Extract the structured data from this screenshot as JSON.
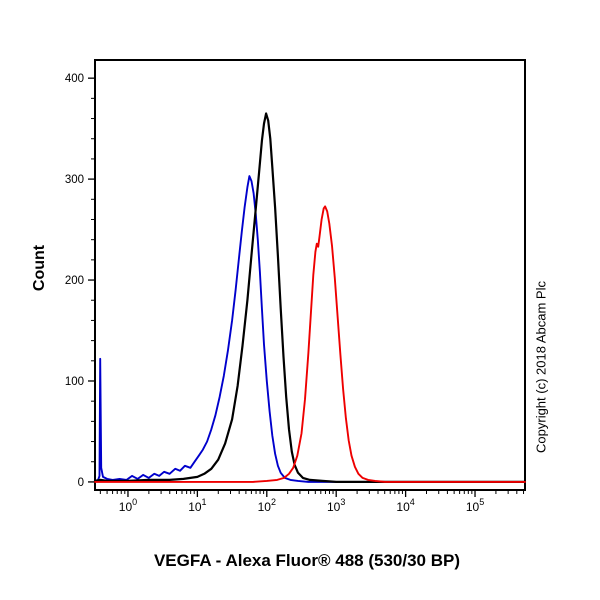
{
  "copyright": "Copyright (c) 2018 Abcam Plc",
  "chart_data": {
    "type": "line",
    "title": "VEGFA - Alexa Fluor® 488 (530/30 BP)",
    "xlabel": "VEGFA - Alexa Fluor® 488 (530/30 BP)",
    "ylabel": "Count",
    "x_scale": "log10",
    "xlim_log": [
      -0.475,
      5.72
    ],
    "ylim": [
      -8,
      418
    ],
    "y_ticks": [
      0,
      100,
      200,
      300,
      400
    ],
    "y_minor_step": 20,
    "x_ticks_exponents": [
      0,
      1,
      2,
      3,
      4,
      5
    ],
    "grid": false,
    "legend": "none",
    "axis_color": "#000000",
    "series": [
      {
        "name": "blue",
        "color": "#0000cc",
        "peak_x": 56,
        "peak_count": 303,
        "points": [
          [
            -0.475,
            1
          ],
          [
            -0.43,
            2
          ],
          [
            -0.41,
            6
          ],
          [
            -0.4,
            122
          ],
          [
            -0.385,
            14
          ],
          [
            -0.36,
            5
          ],
          [
            -0.3,
            3
          ],
          [
            -0.22,
            2
          ],
          [
            -0.12,
            3
          ],
          [
            -0.02,
            2
          ],
          [
            0.06,
            6
          ],
          [
            0.14,
            3
          ],
          [
            0.22,
            7
          ],
          [
            0.3,
            4
          ],
          [
            0.38,
            8
          ],
          [
            0.45,
            6
          ],
          [
            0.52,
            10
          ],
          [
            0.6,
            8
          ],
          [
            0.68,
            13
          ],
          [
            0.75,
            11
          ],
          [
            0.82,
            16
          ],
          [
            0.9,
            14
          ],
          [
            0.96,
            20
          ],
          [
            1.02,
            26
          ],
          [
            1.08,
            32
          ],
          [
            1.14,
            40
          ],
          [
            1.2,
            52
          ],
          [
            1.26,
            66
          ],
          [
            1.32,
            84
          ],
          [
            1.38,
            105
          ],
          [
            1.44,
            130
          ],
          [
            1.5,
            160
          ],
          [
            1.55,
            190
          ],
          [
            1.6,
            222
          ],
          [
            1.64,
            248
          ],
          [
            1.68,
            272
          ],
          [
            1.72,
            292
          ],
          [
            1.75,
            303
          ],
          [
            1.78,
            298
          ],
          [
            1.81,
            286
          ],
          [
            1.84,
            266
          ],
          [
            1.87,
            240
          ],
          [
            1.9,
            208
          ],
          [
            1.93,
            172
          ],
          [
            1.96,
            136
          ],
          [
            2.0,
            100
          ],
          [
            2.04,
            70
          ],
          [
            2.08,
            46
          ],
          [
            2.12,
            28
          ],
          [
            2.16,
            16
          ],
          [
            2.2,
            9
          ],
          [
            2.26,
            4
          ],
          [
            2.34,
            2
          ],
          [
            2.45,
            1
          ],
          [
            2.6,
            0
          ],
          [
            5.72,
            0
          ]
        ]
      },
      {
        "name": "black",
        "color": "#000000",
        "peak_x": 98,
        "peak_count": 365,
        "points": [
          [
            -0.475,
            1
          ],
          [
            -0.4,
            2
          ],
          [
            -0.3,
            1
          ],
          [
            0.0,
            1
          ],
          [
            0.3,
            2
          ],
          [
            0.6,
            2
          ],
          [
            0.8,
            3
          ],
          [
            1.0,
            5
          ],
          [
            1.1,
            8
          ],
          [
            1.2,
            13
          ],
          [
            1.3,
            22
          ],
          [
            1.4,
            38
          ],
          [
            1.5,
            62
          ],
          [
            1.58,
            95
          ],
          [
            1.65,
            135
          ],
          [
            1.72,
            180
          ],
          [
            1.78,
            225
          ],
          [
            1.84,
            270
          ],
          [
            1.89,
            308
          ],
          [
            1.93,
            338
          ],
          [
            1.96,
            355
          ],
          [
            1.99,
            365
          ],
          [
            2.02,
            358
          ],
          [
            2.05,
            340
          ],
          [
            2.08,
            312
          ],
          [
            2.12,
            272
          ],
          [
            2.16,
            224
          ],
          [
            2.2,
            172
          ],
          [
            2.24,
            124
          ],
          [
            2.28,
            84
          ],
          [
            2.32,
            52
          ],
          [
            2.36,
            30
          ],
          [
            2.4,
            17
          ],
          [
            2.45,
            9
          ],
          [
            2.52,
            4
          ],
          [
            2.62,
            2
          ],
          [
            2.8,
            1
          ],
          [
            3.0,
            0
          ],
          [
            5.72,
            0
          ]
        ]
      },
      {
        "name": "red",
        "color": "#ee0000",
        "peak_x": 690,
        "peak_count": 273,
        "points": [
          [
            -0.475,
            0
          ],
          [
            1.8,
            0
          ],
          [
            2.0,
            1
          ],
          [
            2.15,
            2
          ],
          [
            2.25,
            4
          ],
          [
            2.32,
            8
          ],
          [
            2.38,
            14
          ],
          [
            2.44,
            26
          ],
          [
            2.5,
            48
          ],
          [
            2.55,
            82
          ],
          [
            2.6,
            128
          ],
          [
            2.64,
            172
          ],
          [
            2.67,
            205
          ],
          [
            2.7,
            228
          ],
          [
            2.72,
            236
          ],
          [
            2.74,
            233
          ],
          [
            2.76,
            243
          ],
          [
            2.79,
            260
          ],
          [
            2.82,
            271
          ],
          [
            2.84,
            273
          ],
          [
            2.87,
            268
          ],
          [
            2.9,
            256
          ],
          [
            2.94,
            234
          ],
          [
            2.98,
            202
          ],
          [
            3.02,
            164
          ],
          [
            3.06,
            126
          ],
          [
            3.1,
            92
          ],
          [
            3.14,
            63
          ],
          [
            3.18,
            41
          ],
          [
            3.22,
            26
          ],
          [
            3.27,
            15
          ],
          [
            3.32,
            8
          ],
          [
            3.38,
            4
          ],
          [
            3.46,
            2
          ],
          [
            3.56,
            1
          ],
          [
            3.7,
            0
          ],
          [
            5.72,
            0
          ]
        ]
      }
    ]
  }
}
